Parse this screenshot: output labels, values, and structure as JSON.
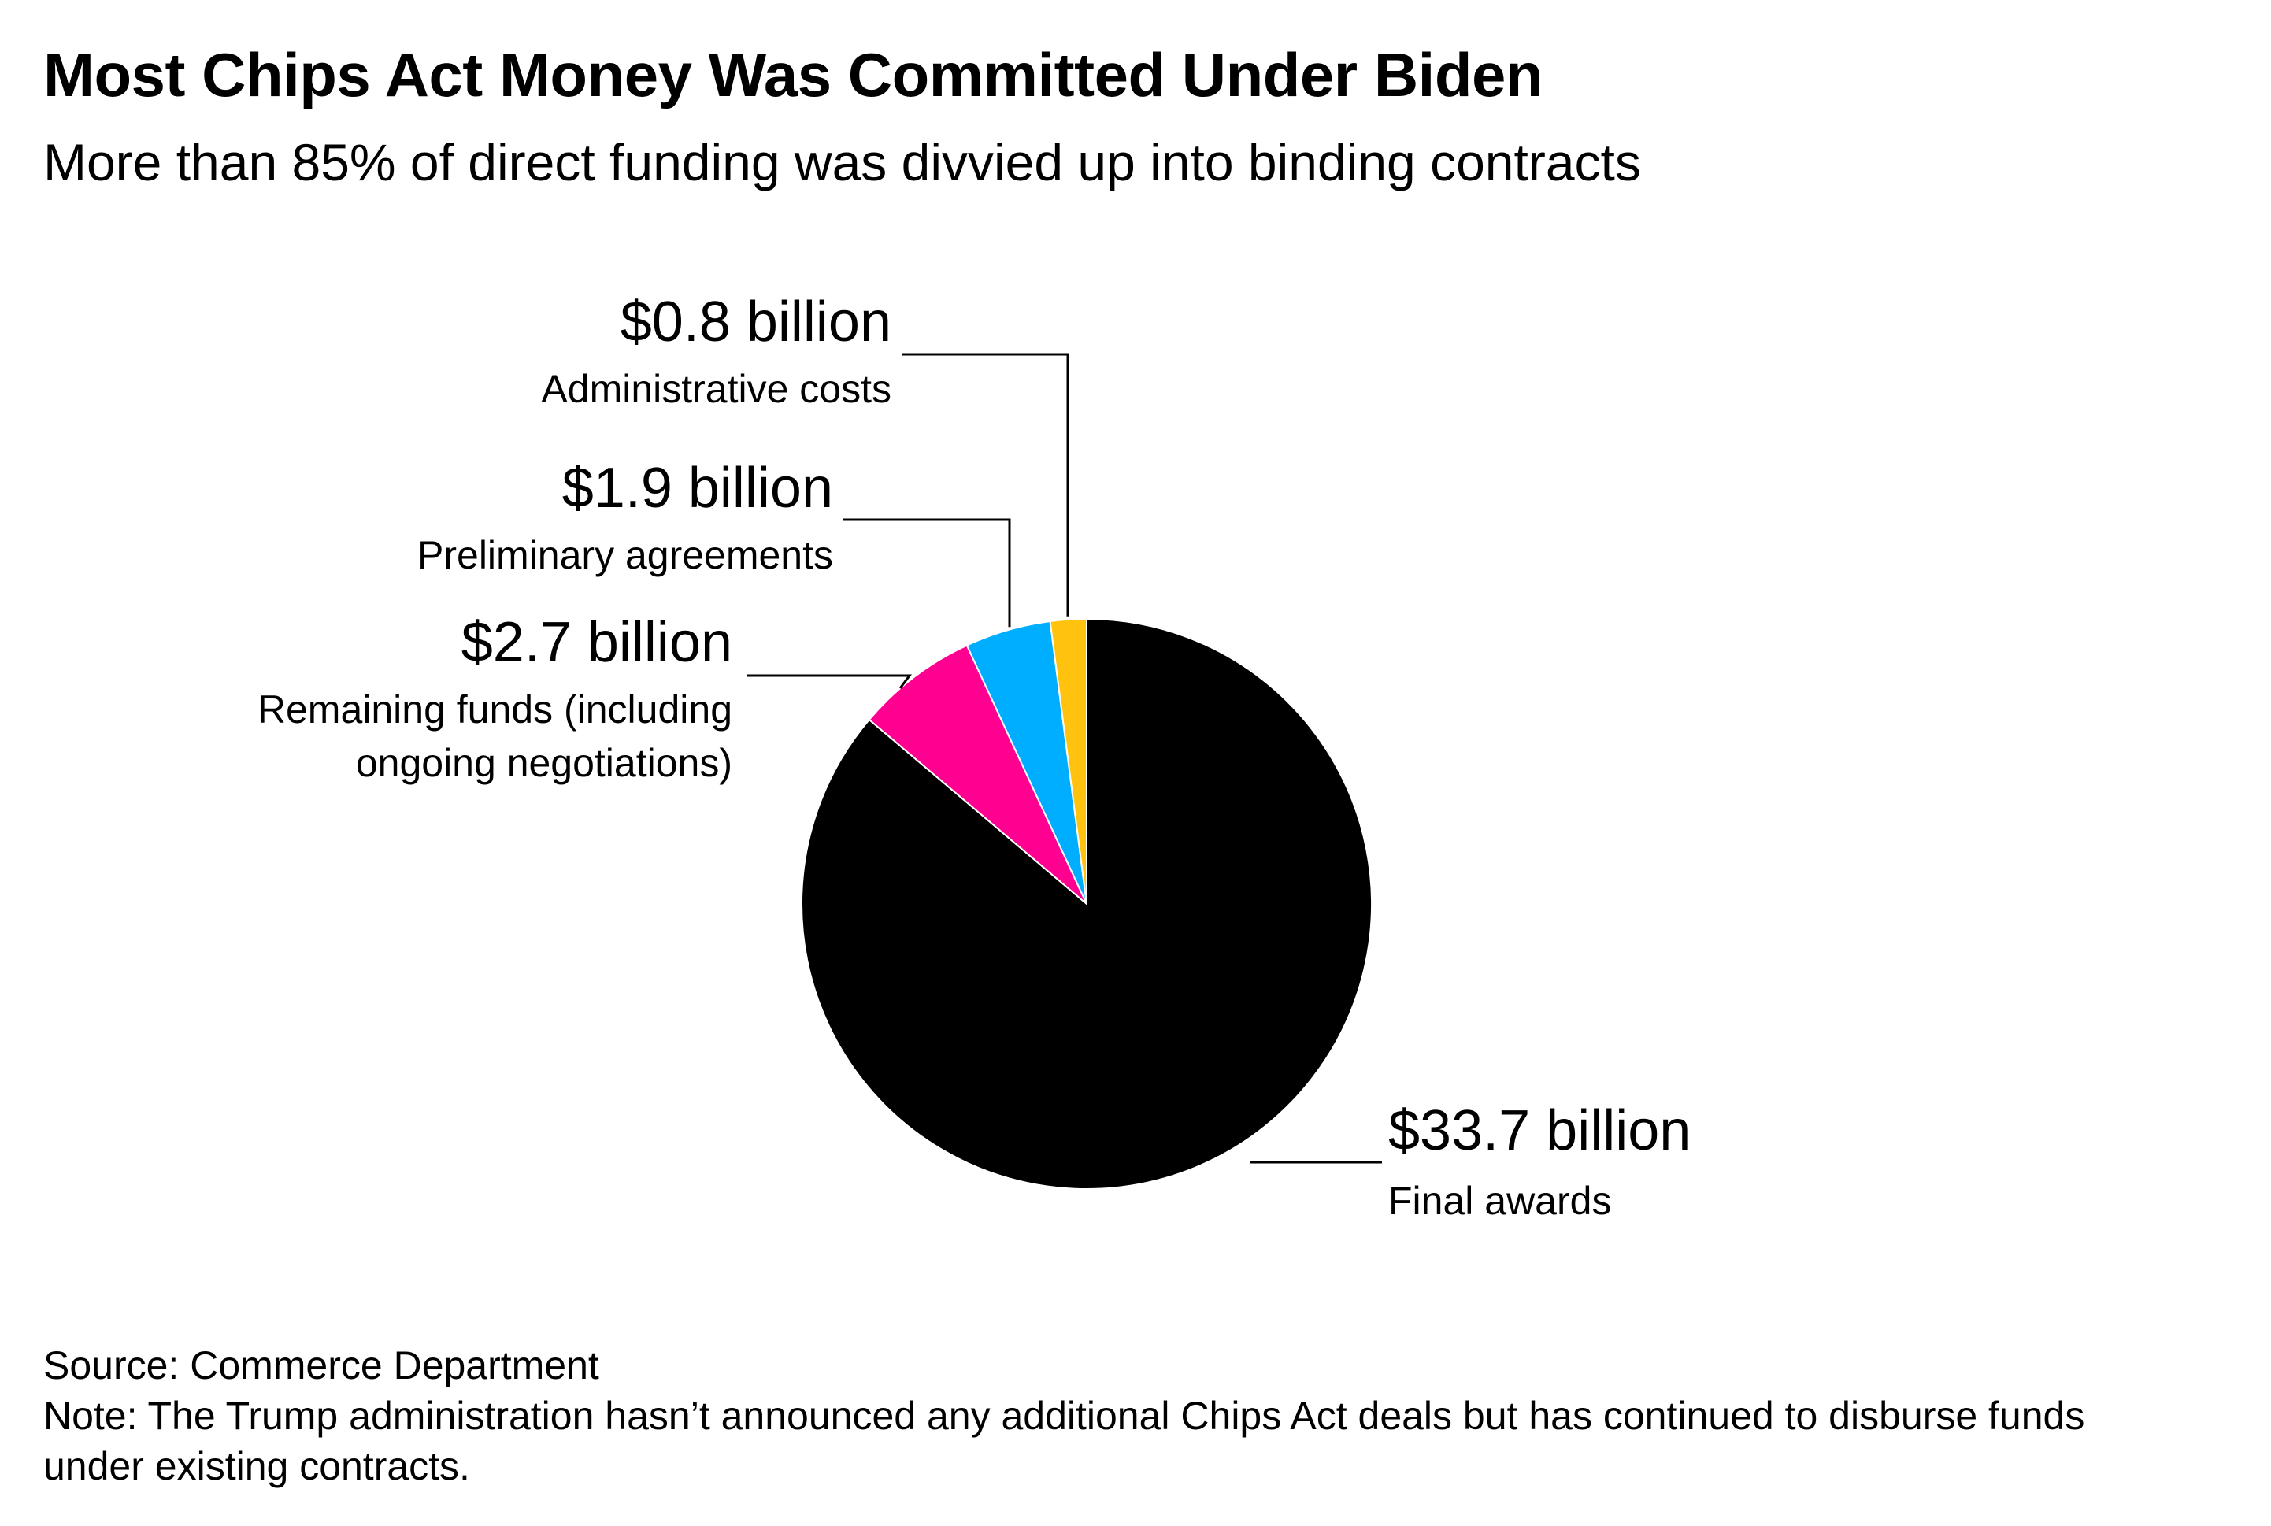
{
  "header": {
    "title": "Most Chips Act Money Was Committed Under Biden",
    "subtitle": "More than 85% of direct funding was divvied up into binding contracts"
  },
  "chart_data": {
    "type": "pie",
    "unit": "billion",
    "slices": [
      {
        "label": "Final awards",
        "value": 33.7,
        "value_label": "$33.7 billion",
        "color": "#000000"
      },
      {
        "label": "Remaining funds (including ongoing negotiations)",
        "value": 2.7,
        "value_label": "$2.7 billion",
        "color": "#FF0090"
      },
      {
        "label": "Preliminary agreements",
        "value": 1.9,
        "value_label": "$1.9 billion",
        "color": "#00AEFF"
      },
      {
        "label": "Administrative costs",
        "value": 0.8,
        "value_label": "$0.8 billion",
        "color": "#FFC20E"
      }
    ]
  },
  "footer": {
    "source": "Source: Commerce Department",
    "note": "Note: The Trump administration hasn’t announced any additional Chips Act deals but has continued to disburse funds under existing contracts."
  }
}
